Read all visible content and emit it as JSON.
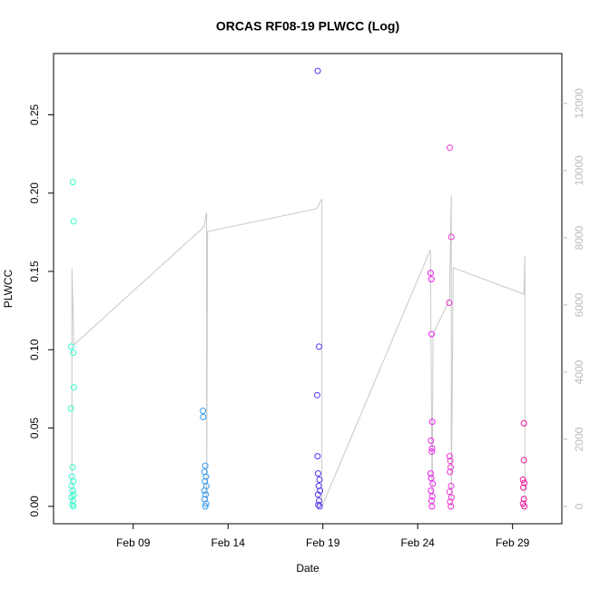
{
  "chart_data": {
    "type": "scatter",
    "title": "ORCAS RF08-19 PLWCC (Log)",
    "x_label": "Date",
    "y_label": "PLWCC",
    "xlim": [
      4.8,
      31.6
    ],
    "xticks": [
      {
        "value": 9,
        "label": "Feb 09"
      },
      {
        "value": 14,
        "label": "Feb 14"
      },
      {
        "value": 19,
        "label": "Feb 19"
      },
      {
        "value": 24,
        "label": "Feb 24"
      },
      {
        "value": 29,
        "label": "Feb 29"
      }
    ],
    "ylim": [
      -0.0111,
      0.2891
    ],
    "yticks": [
      {
        "value": 0,
        "label": "0.00"
      },
      {
        "value": 0.05,
        "label": "0.05"
      },
      {
        "value": 0.1,
        "label": "0.10"
      },
      {
        "value": 0.15,
        "label": "0.15"
      },
      {
        "value": 0.2,
        "label": "0.20"
      },
      {
        "value": 0.25,
        "label": "0.25"
      }
    ],
    "y2lim": [
      -513,
      13486
    ],
    "y2ticks": [
      0,
      2000,
      4000,
      6000,
      8000,
      10000,
      12000
    ],
    "series": [
      {
        "color": "#33ffcc",
        "x": [
          5.82,
          5.86,
          5.73,
          5.84,
          5.87,
          5.72,
          5.8,
          5.77,
          5.84,
          5.75,
          5.81,
          5.86,
          5.76,
          5.83,
          5.79,
          5.85
        ],
        "values": [
          0.207,
          0.182,
          0.102,
          0.098,
          0.076,
          0.0625,
          0.025,
          0.019,
          0.016,
          0.013,
          0.01,
          0.0075,
          0.006,
          0.0035,
          0.001,
          0
        ]
      },
      {
        "color": "#3399ee",
        "x": [
          12.68,
          12.69,
          12.8,
          12.76,
          12.84,
          12.78,
          12.86,
          12.75,
          12.82,
          12.77,
          12.85,
          12.8
        ],
        "values": [
          0.061,
          0.057,
          0.026,
          0.022,
          0.019,
          0.016,
          0.013,
          0.01,
          0.0075,
          0.0046,
          0.0017,
          0
        ]
      },
      {
        "color": "#5533ee",
        "x": [
          18.73,
          18.8,
          18.7,
          18.72,
          18.75,
          18.82,
          18.78,
          18.85,
          18.74,
          18.8,
          18.76,
          18.83
        ],
        "values": [
          0.278,
          0.102,
          0.071,
          0.032,
          0.021,
          0.017,
          0.013,
          0.01,
          0.0075,
          0.0035,
          0.001,
          0
        ]
      },
      {
        "color": "#ee22ee",
        "x": [
          24.68,
          24.72,
          24.73,
          24.77,
          24.7,
          24.76,
          24.74,
          24.68,
          24.71,
          24.79,
          24.7,
          24.77,
          24.73,
          24.75
        ],
        "values": [
          0.149,
          0.145,
          0.11,
          0.054,
          0.042,
          0.037,
          0.035,
          0.021,
          0.018,
          0.0145,
          0.01,
          0.0064,
          0.0035,
          0
        ]
      },
      {
        "color": "#ee33cc",
        "x": [
          25.69,
          25.77,
          25.66,
          25.68,
          25.72,
          25.74,
          25.7,
          25.76,
          25.68,
          25.78,
          25.71,
          25.75
        ],
        "values": [
          0.229,
          0.172,
          0.13,
          0.032,
          0.029,
          0.025,
          0.022,
          0.013,
          0.0093,
          0.0058,
          0.0029,
          0
        ]
      },
      {
        "color": "#ee1199",
        "x": [
          29.6,
          29.6,
          29.55,
          29.62,
          29.57,
          29.6,
          29.55,
          29.62
        ],
        "values": [
          0.053,
          0.0295,
          0.017,
          0.015,
          0.012,
          0.0046,
          0.0017,
          0
        ]
      },
      {
        "type": "line",
        "axis": "y2",
        "color": "#c8c8c8",
        "x": [
          5.77,
          5.77,
          5.87,
          12.73,
          12.87,
          12.87,
          12.92,
          18.68,
          18.95,
          18.95,
          24.67,
          24.76,
          24.81,
          25.68,
          25.77,
          25.77,
          25.87,
          29.6,
          29.65,
          29.65
        ],
        "values": [
          0,
          7081,
          4811,
          8324,
          8757,
          0,
          8189,
          8865,
          9162,
          0,
          7649,
          0,
          5135,
          6162,
          9270,
          0,
          7108,
          6324,
          7459,
          0
        ]
      }
    ]
  }
}
